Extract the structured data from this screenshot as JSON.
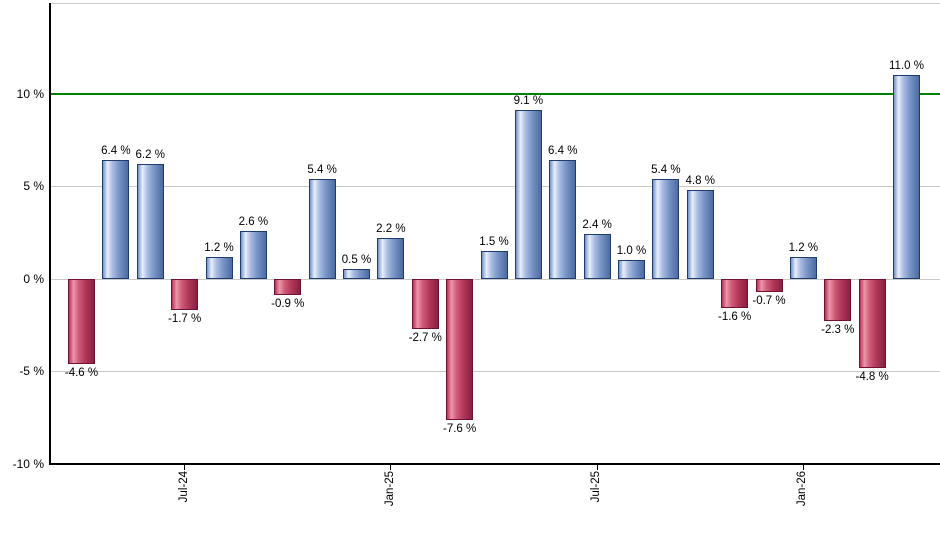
{
  "chart_data": {
    "type": "bar",
    "title": "",
    "xlabel": "",
    "ylabel": "",
    "unit": "%",
    "grid": true,
    "ylim": [
      -10,
      15
    ],
    "bars": [
      {
        "value": -4.6,
        "label": "-4.6 %"
      },
      {
        "value": 6.4,
        "label": "6.4 %"
      },
      {
        "value": 6.2,
        "label": "6.2 %"
      },
      {
        "value": -1.7,
        "label": "-1.7 %"
      },
      {
        "value": 1.2,
        "label": "1.2 %"
      },
      {
        "value": 2.6,
        "label": "2.6 %"
      },
      {
        "value": -0.9,
        "label": "-0.9 %"
      },
      {
        "value": 5.4,
        "label": "5.4 %"
      },
      {
        "value": 0.5,
        "label": "0.5 %"
      },
      {
        "value": 2.2,
        "label": "2.2 %"
      },
      {
        "value": -2.7,
        "label": "-2.7 %"
      },
      {
        "value": -7.6,
        "label": "-7.6 %"
      },
      {
        "value": 1.5,
        "label": "1.5 %"
      },
      {
        "value": 9.1,
        "label": "9.1 %"
      },
      {
        "value": 6.4,
        "label": "6.4 %"
      },
      {
        "value": 2.4,
        "label": "2.4 %"
      },
      {
        "value": 1.0,
        "label": "1.0 %"
      },
      {
        "value": 5.4,
        "label": "5.4 %"
      },
      {
        "value": 4.8,
        "label": "4.8 %"
      },
      {
        "value": -1.6,
        "label": "-1.6 %"
      },
      {
        "value": -0.7,
        "label": "-0.7 %"
      },
      {
        "value": 1.2,
        "label": "1.2 %"
      },
      {
        "value": -2.3,
        "label": "-2.3 %"
      },
      {
        "value": -4.8,
        "label": "-4.8 %"
      },
      {
        "value": 11.0,
        "label": "11.0 %"
      }
    ],
    "x_ticks": [
      {
        "label": "Jul-24",
        "bar_index": 3
      },
      {
        "label": "Jan-25",
        "bar_index": 9
      },
      {
        "label": "Jul-25",
        "bar_index": 15
      },
      {
        "label": "Jan-26",
        "bar_index": 21
      }
    ],
    "y_ticks": [
      {
        "label": "10 %",
        "value": 10
      },
      {
        "label": "5 %",
        "value": 5
      },
      {
        "label": "0 %",
        "value": 0
      },
      {
        "label": "-5 %",
        "value": -5
      },
      {
        "label": "-10 %",
        "value": -10
      }
    ],
    "reference_line": {
      "value": 10,
      "color": "#008000"
    },
    "legend": null,
    "colors": {
      "background": "#ffffff",
      "gridline": "#c9c9c9",
      "frame_top": "#cccccc",
      "axis": "#000000",
      "label_text": "#000000",
      "positive_bar_border": "#1e3d6e",
      "positive_bar_gradient": [
        "#7493c6",
        "#e8eefb",
        "#a9bce2",
        "#7b97c8",
        "#4c6ba3"
      ],
      "negative_bar_border": "#6f1130",
      "negative_bar_gradient": [
        "#b53457",
        "#ec96ab",
        "#d05d79",
        "#b43b5d",
        "#8b1f41"
      ]
    }
  }
}
